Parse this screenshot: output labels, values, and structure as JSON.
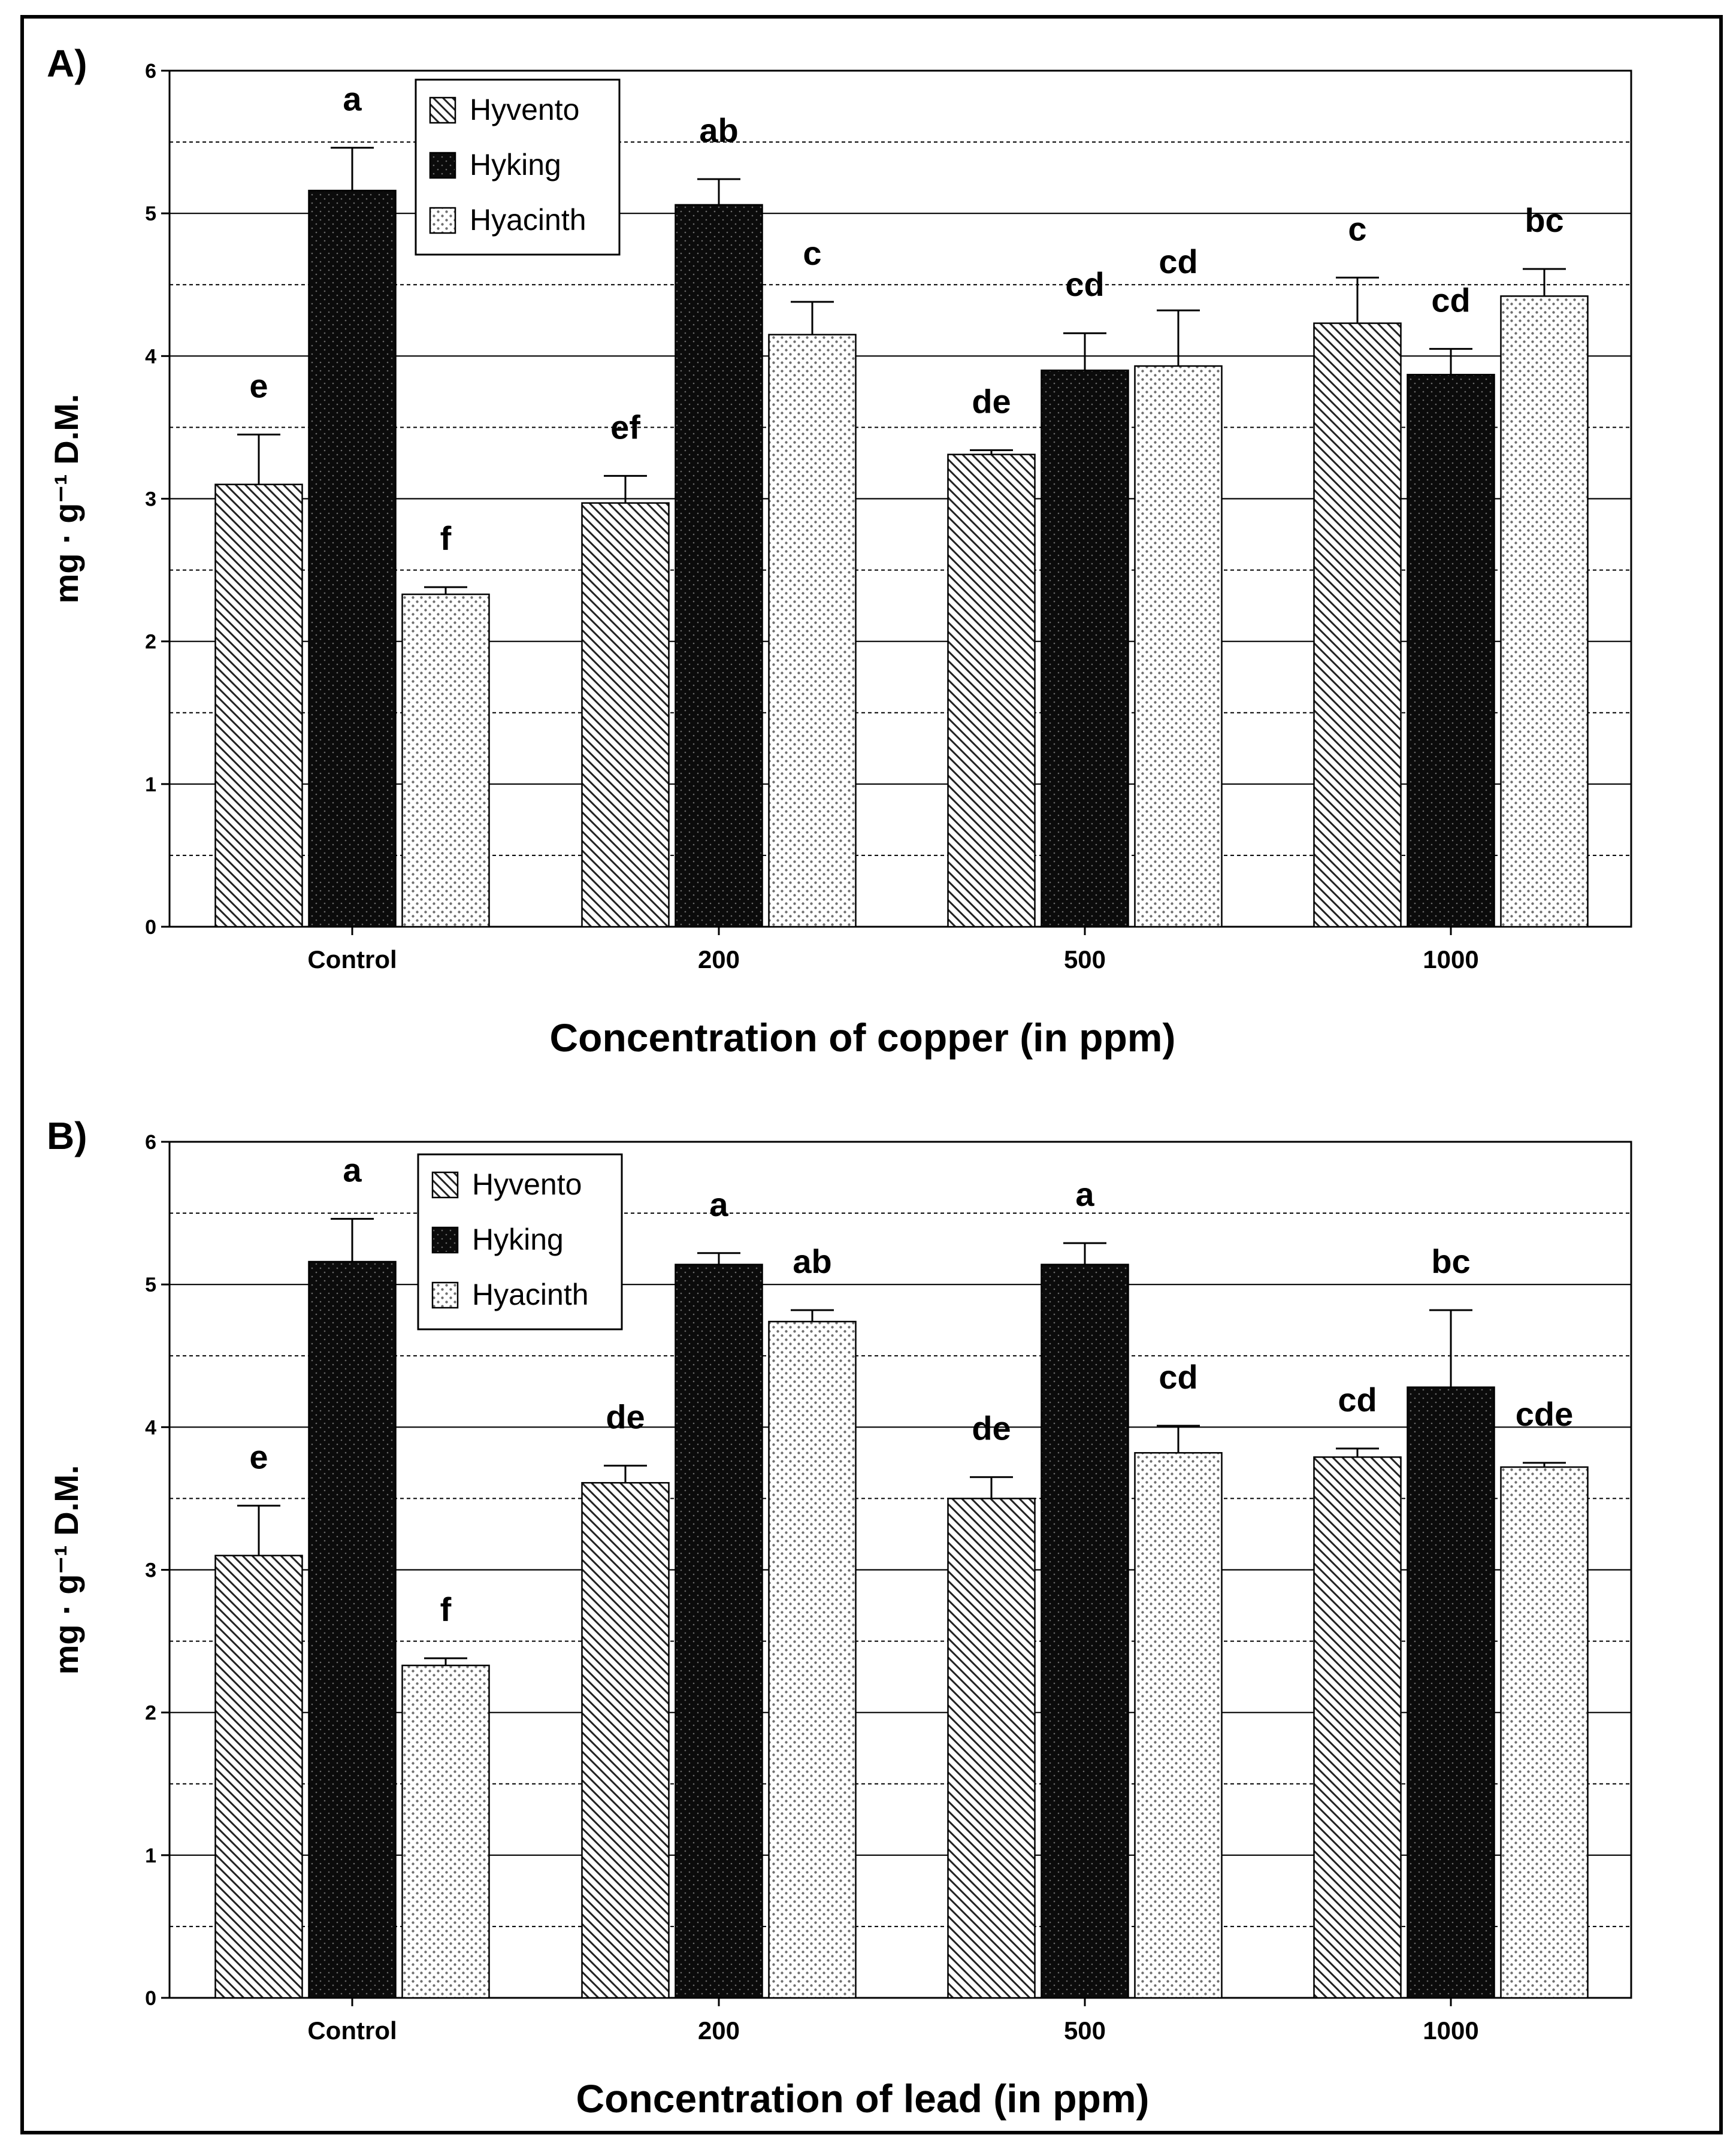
{
  "chart_data": [
    {
      "panel": "A)",
      "type": "bar",
      "xlabel": "Concentration of copper (in ppm)",
      "ylabel": "mg · g⁻¹ D.M.",
      "ylim": [
        0,
        6
      ],
      "yticks": [
        "0",
        "1",
        "2",
        "3",
        "4",
        "5",
        "6"
      ],
      "grid": "solid at integers, dashed at halves",
      "legend": "top-left",
      "categories": [
        "Control",
        "200",
        "500",
        "1000"
      ],
      "series": [
        {
          "name": "Hyvento",
          "pattern": "hatch",
          "values": [
            3.1,
            2.97,
            3.31,
            4.23
          ],
          "errors": [
            0.35,
            0.19,
            0.03,
            0.32
          ],
          "labels": [
            "e",
            "ef",
            "de",
            "c"
          ]
        },
        {
          "name": "Hyking",
          "pattern": "dark",
          "values": [
            5.16,
            5.06,
            3.9,
            3.87
          ],
          "errors": [
            0.3,
            0.18,
            0.26,
            0.18
          ],
          "labels": [
            "a",
            "ab",
            "cd",
            "cd"
          ]
        },
        {
          "name": "Hyacinth",
          "pattern": "dots",
          "values": [
            2.33,
            4.15,
            3.93,
            4.42
          ],
          "errors": [
            0.05,
            0.23,
            0.39,
            0.19
          ],
          "labels": [
            "f",
            "c",
            "cd",
            "bc"
          ]
        }
      ]
    },
    {
      "panel": "B)",
      "type": "bar",
      "xlabel": "Concentration of lead (in ppm)",
      "ylabel": "mg · g⁻¹ D.M.",
      "ylim": [
        0,
        6
      ],
      "yticks": [
        "0",
        "1",
        "2",
        "3",
        "4",
        "5",
        "6"
      ],
      "grid": "solid at integers, dashed at halves",
      "legend": "top-left",
      "categories": [
        "Control",
        "200",
        "500",
        "1000"
      ],
      "series": [
        {
          "name": "Hyvento",
          "pattern": "hatch",
          "values": [
            3.1,
            3.61,
            3.5,
            3.79
          ],
          "errors": [
            0.35,
            0.12,
            0.15,
            0.06
          ],
          "labels": [
            "e",
            "de",
            "de",
            "cd"
          ]
        },
        {
          "name": "Hyking",
          "pattern": "dark",
          "values": [
            5.16,
            5.14,
            5.14,
            4.28
          ],
          "errors": [
            0.3,
            0.08,
            0.15,
            0.54
          ],
          "labels": [
            "a",
            "a",
            "a",
            "bc"
          ]
        },
        {
          "name": "Hyacinth",
          "pattern": "dots",
          "values": [
            2.33,
            4.74,
            3.82,
            3.72
          ],
          "errors": [
            0.05,
            0.08,
            0.19,
            0.03
          ],
          "labels": [
            "f",
            "ab",
            "cd",
            "cde"
          ]
        }
      ]
    }
  ]
}
